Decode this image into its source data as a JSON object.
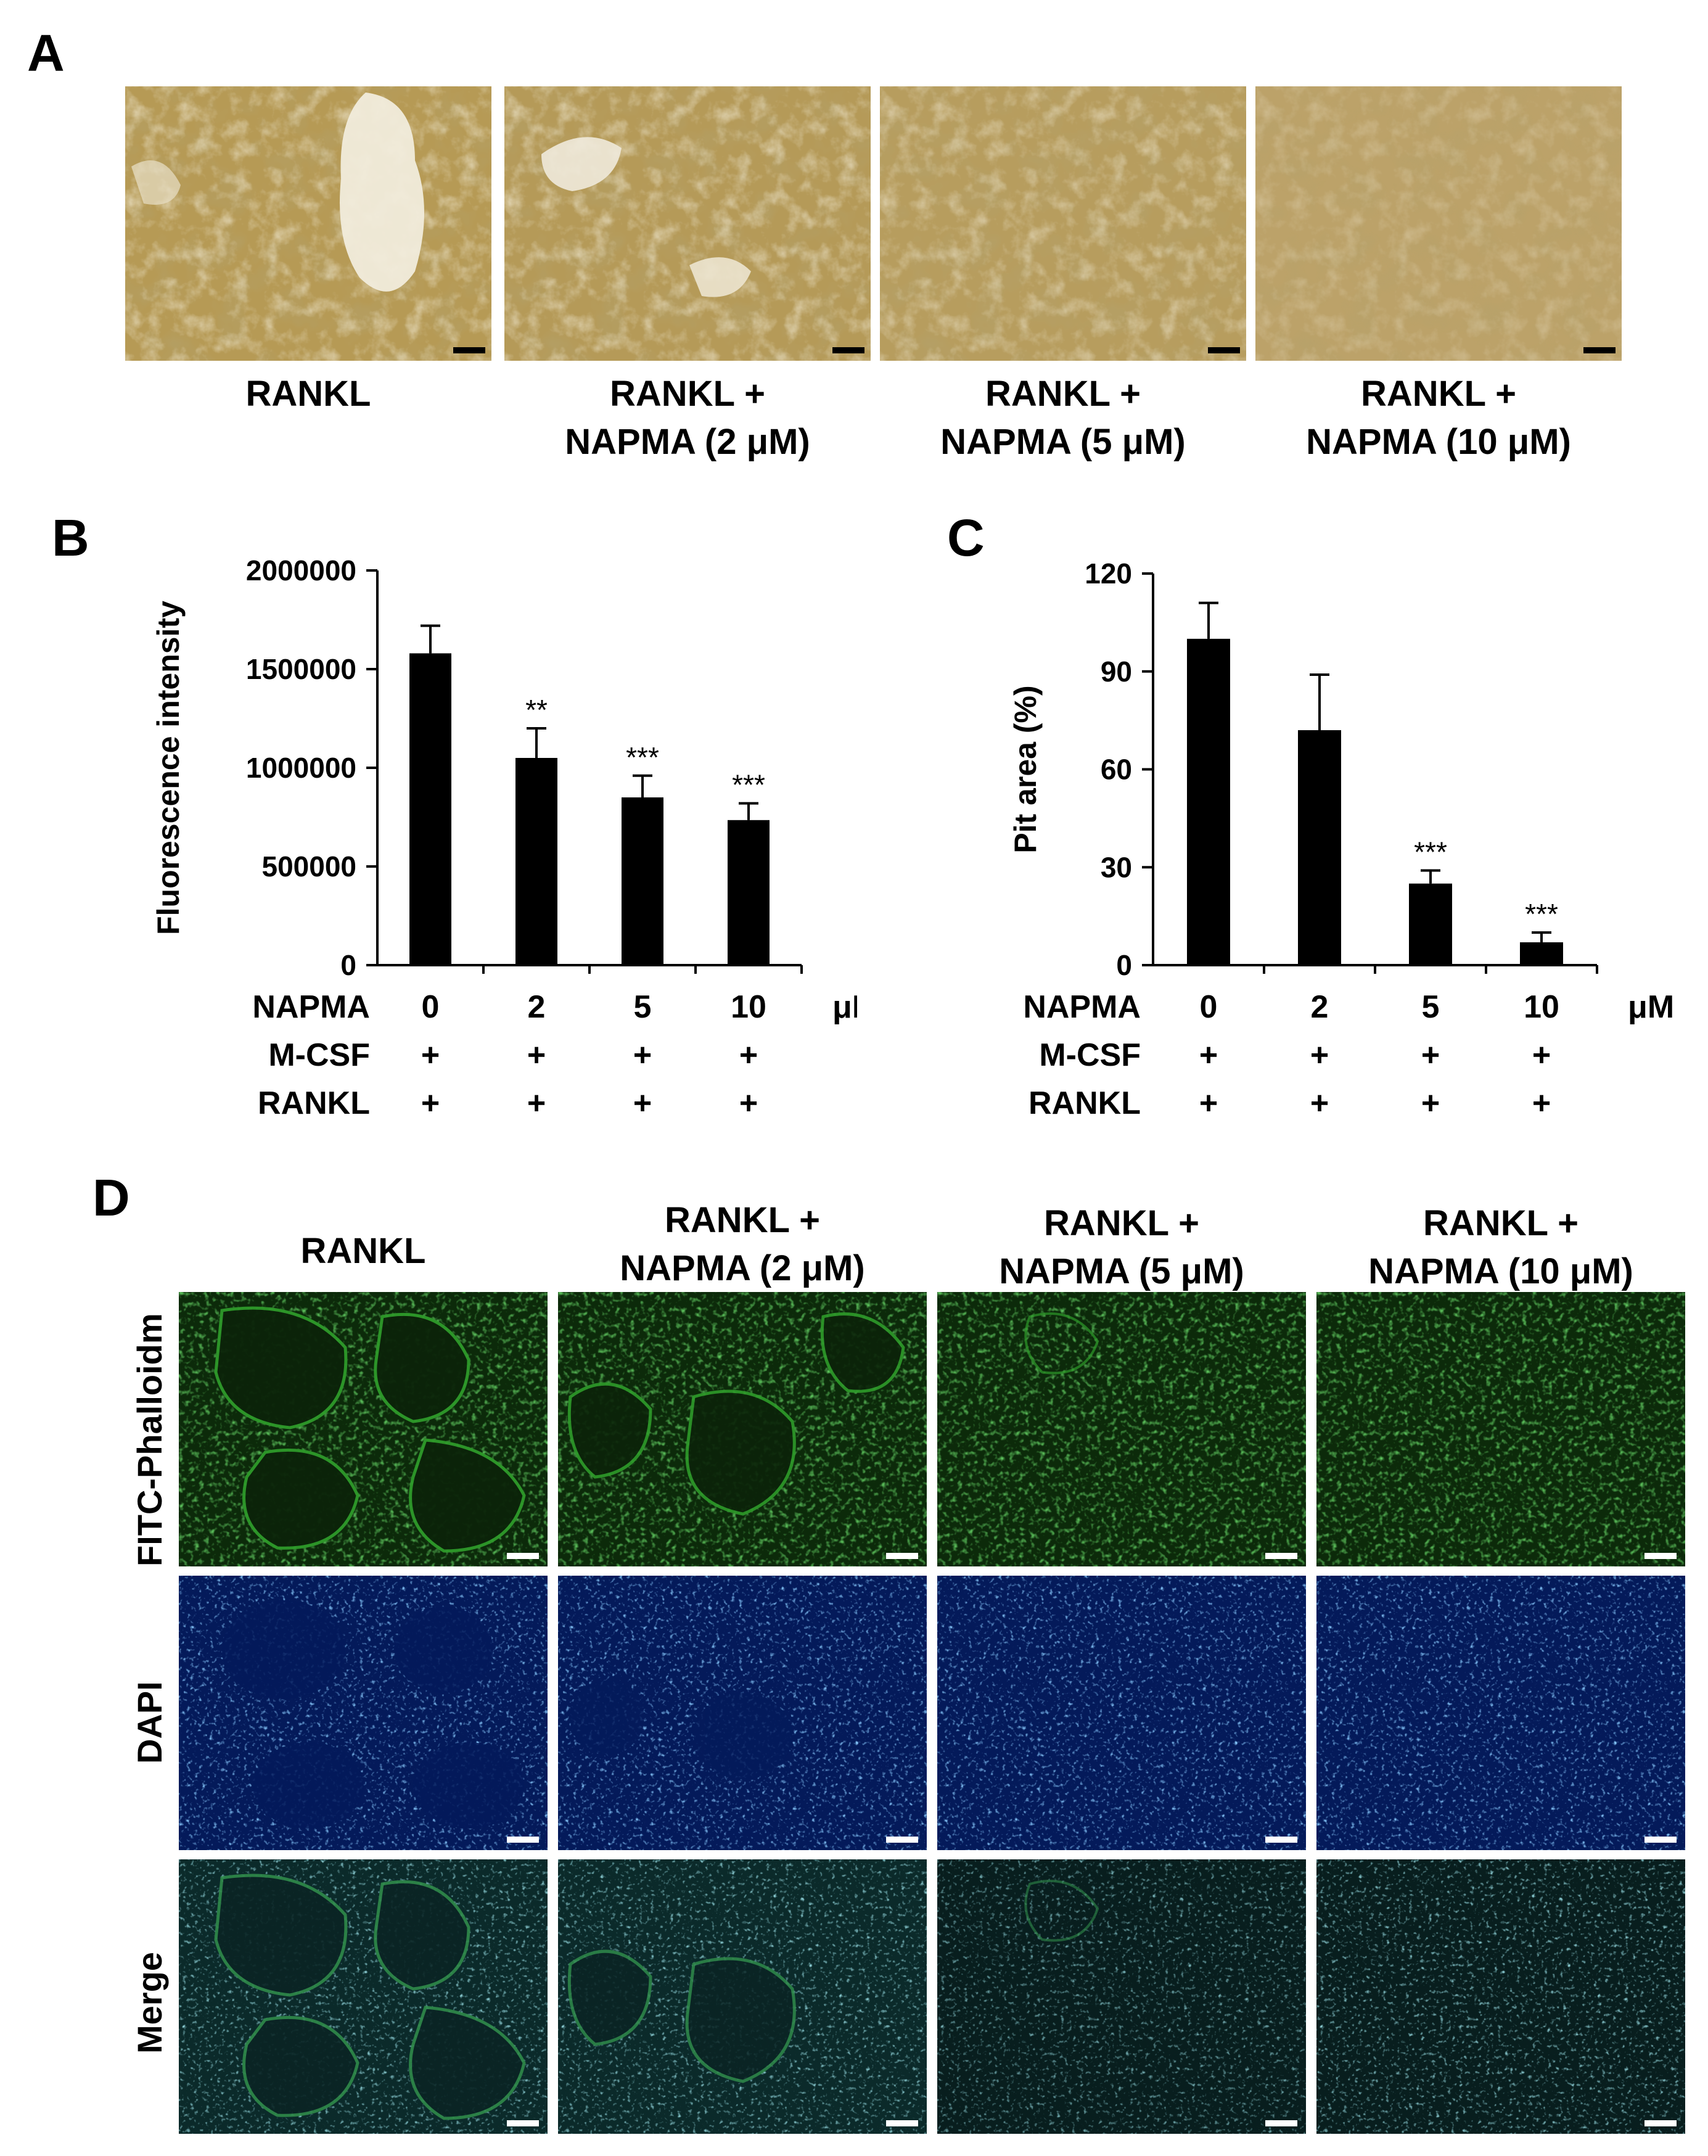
{
  "panels": {
    "A": {
      "letter": "A",
      "captions": [
        {
          "line1": "RANKL",
          "line2": ""
        },
        {
          "line1": "RANKL +",
          "line2": "NAPMA (2 μM)"
        },
        {
          "line1": "RANKL +",
          "line2": "NAPMA (5 μM)"
        },
        {
          "line1": "RANKL +",
          "line2": "NAPMA (10 μM)"
        }
      ]
    },
    "B": {
      "letter": "B"
    },
    "C": {
      "letter": "C"
    },
    "D": {
      "letter": "D",
      "captions": [
        {
          "line1": "RANKL",
          "line2": ""
        },
        {
          "line1": "RANKL +",
          "line2": "NAPMA (2 μM)"
        },
        {
          "line1": "RANKL +",
          "line2": "NAPMA (5 μM)"
        },
        {
          "line1": "RANKL +",
          "line2": "NAPMA (10 μM)"
        }
      ],
      "row_labels": [
        "FITC-Phalloidm",
        "DAPI",
        "Merge"
      ]
    }
  },
  "treatment_table": {
    "row_labels": [
      "NAPMA",
      "M-CSF",
      "RANKL"
    ],
    "napma_values": [
      "0",
      "2",
      "5",
      "10"
    ],
    "unit": "μM",
    "plus": "+"
  },
  "chart_data": [
    {
      "type": "bar",
      "panel": "B",
      "categories": [
        "0",
        "2",
        "5",
        "10"
      ],
      "values": [
        1580000,
        1050000,
        850000,
        735000
      ],
      "errors": [
        140000,
        150000,
        110000,
        85000
      ],
      "significance": [
        "",
        "**",
        "***",
        "***"
      ],
      "ylabel": "Fluorescence  intensity",
      "ylim": [
        0,
        2000000
      ],
      "yticks": [
        0,
        500000,
        1000000,
        1500000,
        2000000
      ],
      "ytick_labels": [
        "0",
        "500000",
        "1000000",
        "1500000",
        "2000000"
      ],
      "bar_color": "#000000"
    },
    {
      "type": "bar",
      "panel": "C",
      "categories": [
        "0",
        "2",
        "5",
        "10"
      ],
      "values": [
        100,
        72,
        25,
        7
      ],
      "errors": [
        11,
        17,
        4,
        3
      ],
      "significance": [
        "",
        "",
        "***",
        "***"
      ],
      "ylabel": "Pit area (%)",
      "ylim": [
        0,
        120
      ],
      "yticks": [
        0,
        30,
        60,
        90,
        120
      ],
      "ytick_labels": [
        "0",
        "30",
        "60",
        "90",
        "120"
      ],
      "bar_color": "#000000"
    }
  ]
}
